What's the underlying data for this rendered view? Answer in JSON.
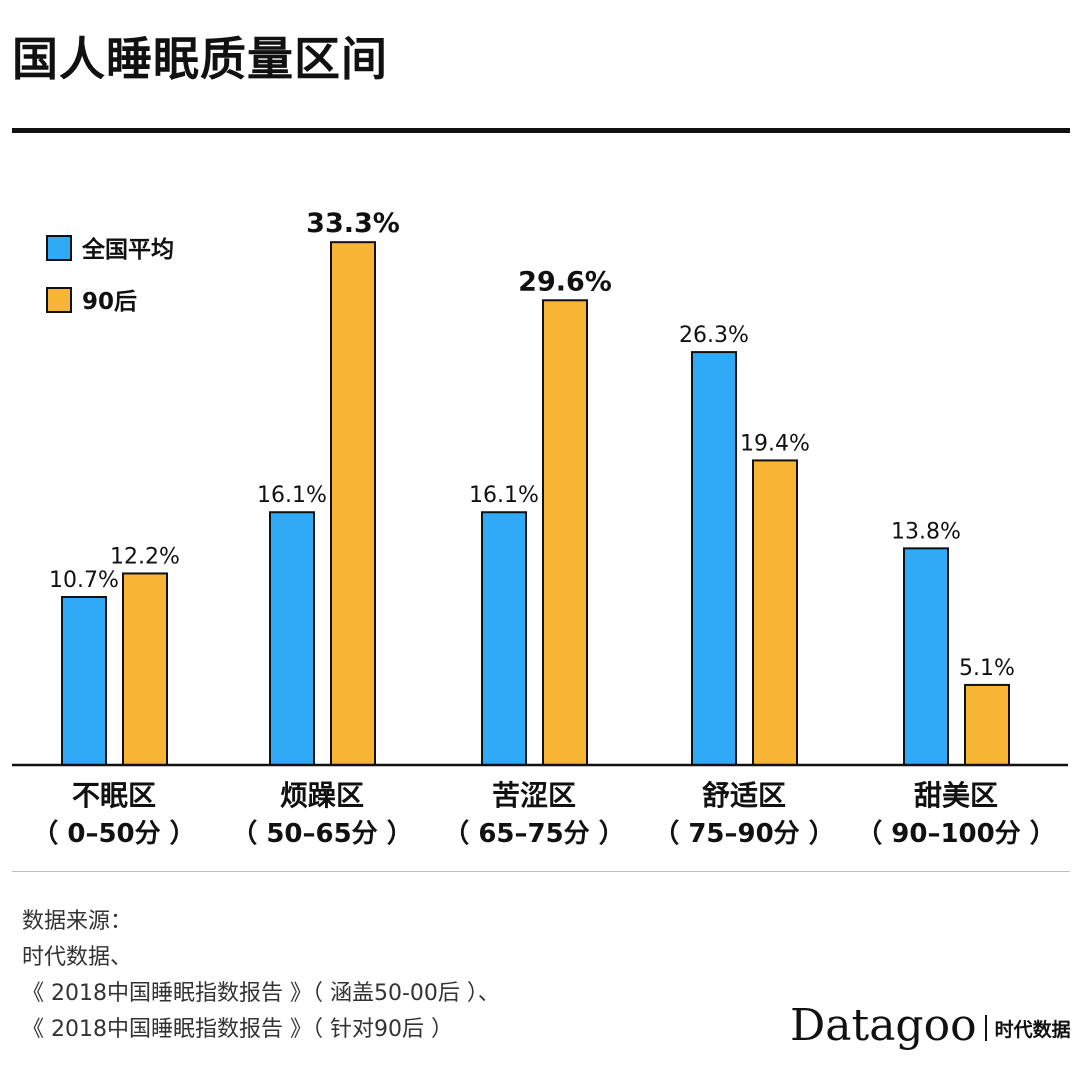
{
  "title": "国人睡眠质量区间",
  "chart_data": {
    "type": "bar",
    "categories": [
      "不眠区",
      "烦躁区",
      "苦涩区",
      "舒适区",
      "甜美区"
    ],
    "category_ranges": [
      "（ 0–50分 ）",
      "（ 50–65分 ）",
      "（ 65–75分 ）",
      "（ 75–90分 ）",
      "（ 90–100分 ）"
    ],
    "series": [
      {
        "name": "全国平均",
        "color": "#2eaaf7",
        "values": [
          10.7,
          16.1,
          16.1,
          26.3,
          13.8
        ],
        "labels": [
          "10.7%",
          "16.1%",
          "16.1%",
          "26.3%",
          "13.8%"
        ]
      },
      {
        "name": "90后",
        "color": "#f8b535",
        "values": [
          12.2,
          33.3,
          29.6,
          19.4,
          5.1
        ],
        "labels": [
          "12.2%",
          "33.3%",
          "29.6%",
          "19.4%",
          "5.1%"
        ],
        "bold_labels": [
          false,
          true,
          true,
          false,
          false
        ]
      }
    ],
    "ylim": [
      0,
      35
    ],
    "legend_position": "top-left",
    "grid": false
  },
  "source": {
    "heading": "数据来源：",
    "lines": [
      "时代数据、",
      "《 2018中国睡眠指数报告 》（ 涵盖50-00后 ）、",
      "《 2018中国睡眠指数报告 》（ 针对90后 ）"
    ]
  },
  "logo": {
    "en": "Datagoo",
    "cn": "时代数据"
  }
}
